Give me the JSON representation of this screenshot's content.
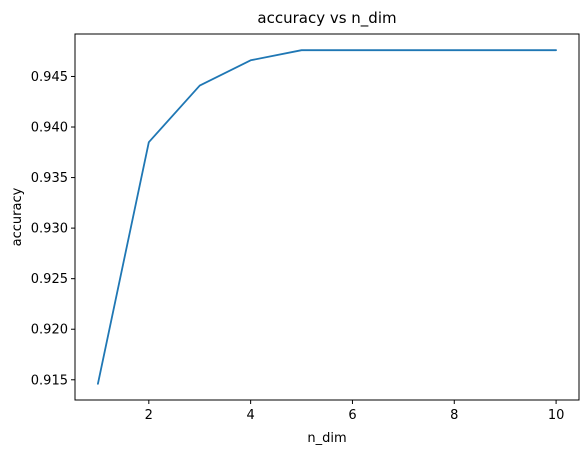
{
  "chart_data": {
    "type": "line",
    "title": "accuracy vs n_dim",
    "xlabel": "n_dim",
    "ylabel": "accuracy",
    "xlim": [
      0.55,
      10.45
    ],
    "ylim": [
      0.913,
      0.9492
    ],
    "xticks": [
      2,
      4,
      6,
      8,
      10
    ],
    "yticks": [
      0.915,
      0.92,
      0.925,
      0.93,
      0.935,
      0.94,
      0.945
    ],
    "grid": false,
    "series": [
      {
        "color": "#1f77b4",
        "x": [
          1,
          2,
          3,
          4,
          5,
          6,
          7,
          8,
          9,
          10
        ],
        "y": [
          0.9146,
          0.9385,
          0.9441,
          0.9466,
          0.9476,
          0.9476,
          0.9476,
          0.9476,
          0.9476,
          0.9476
        ]
      }
    ]
  }
}
